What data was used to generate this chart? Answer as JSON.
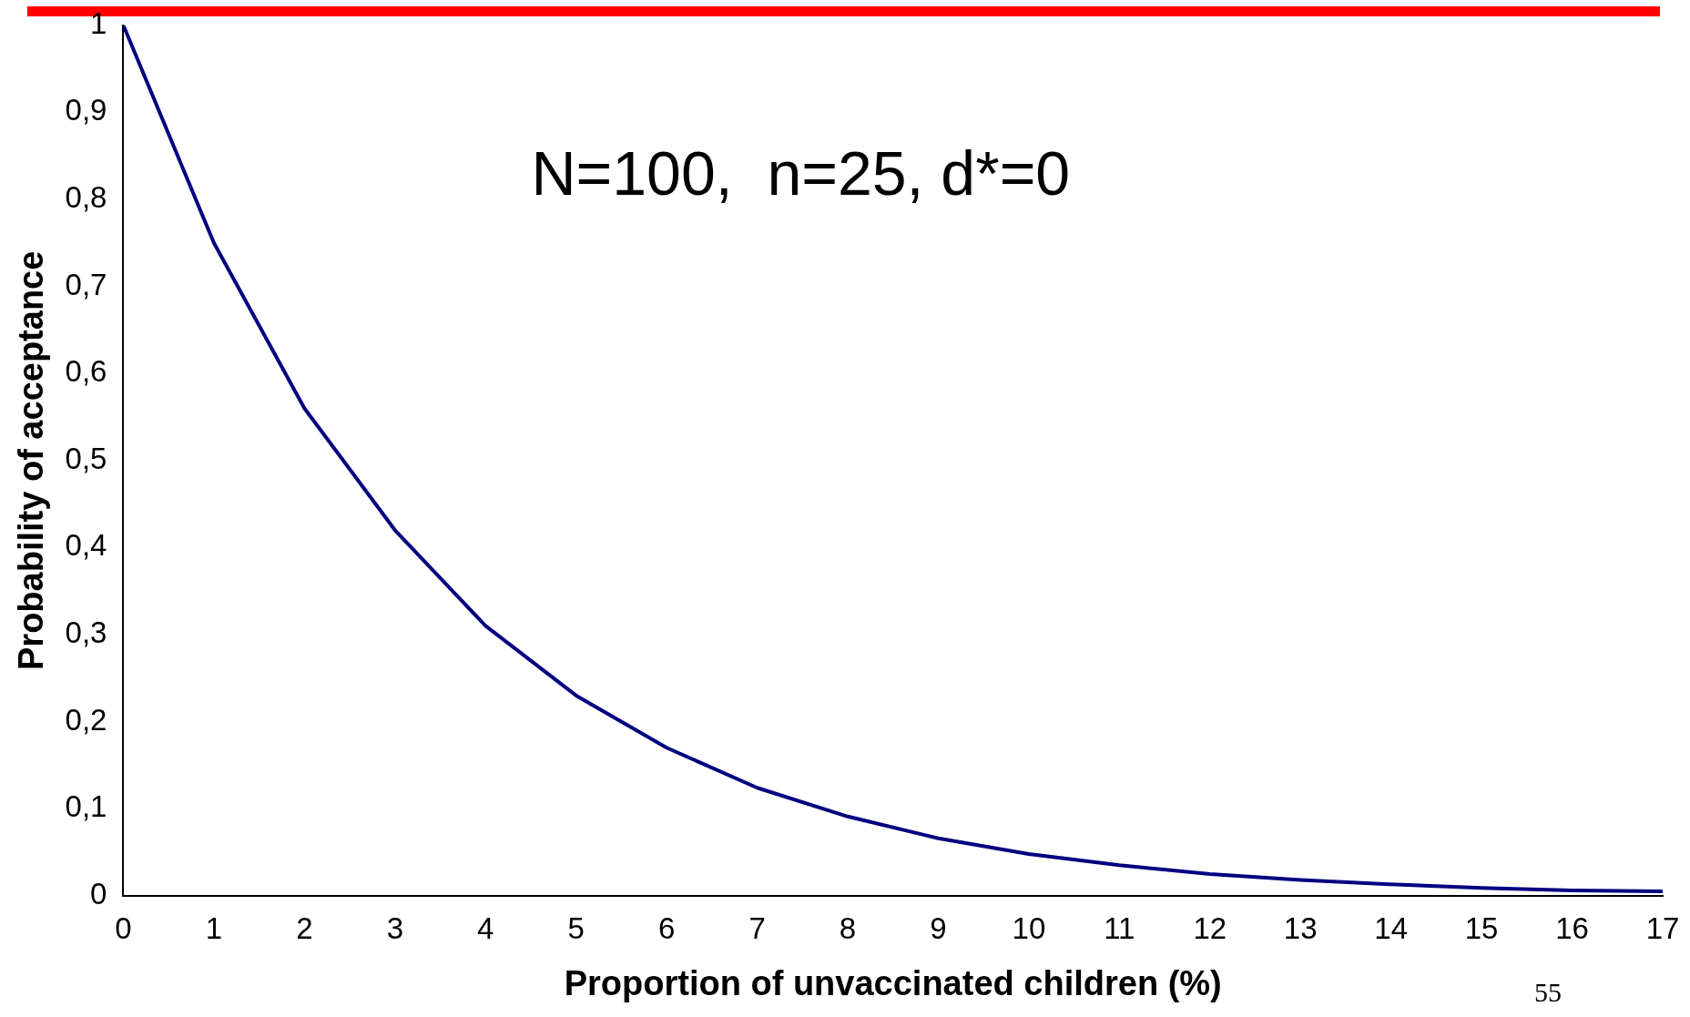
{
  "chart_data": {
    "type": "line",
    "xlabel": "Proportion of unvaccinated children (%)",
    "ylabel": "Probability of acceptance",
    "x": [
      0,
      1,
      2,
      3,
      4,
      5,
      6,
      7,
      8,
      9,
      10,
      11,
      12,
      13,
      14,
      15,
      16,
      17
    ],
    "series": [
      {
        "color": "#000080",
        "values": [
          1,
          0.75,
          0.56,
          0.42,
          0.31,
          0.23,
          0.17,
          0.124,
          0.091,
          0.066,
          0.048,
          0.035,
          0.025,
          0.018,
          0.013,
          0.009,
          0.006,
          0.005
        ]
      }
    ],
    "xlim": [
      0,
      17
    ],
    "xticks": [
      0,
      1,
      2,
      3,
      4,
      5,
      6,
      7,
      8,
      9,
      10,
      11,
      12,
      13,
      14,
      15,
      16,
      17
    ],
    "ylim": [
      0,
      1
    ],
    "yticks": [
      0,
      {
        "value": 0.1,
        "label": "0,1"
      },
      {
        "value": 0.2,
        "label": "0,2"
      },
      {
        "value": 0.3,
        "label": "0,3"
      },
      {
        "value": 0.4,
        "label": "0,4"
      },
      {
        "value": 0.5,
        "label": "0,5"
      },
      {
        "value": 0.6,
        "label": "0,6"
      },
      {
        "value": 0.7,
        "label": "0,7"
      },
      {
        "value": 0.8,
        "label": "0,8"
      },
      {
        "value": 0.9,
        "label": "0,9"
      },
      1
    ],
    "grid": false,
    "legend": false,
    "marker": "none",
    "line_style": "solid",
    "annotations": [
      "N=100,  n=25, d*=0",
      "55"
    ]
  }
}
